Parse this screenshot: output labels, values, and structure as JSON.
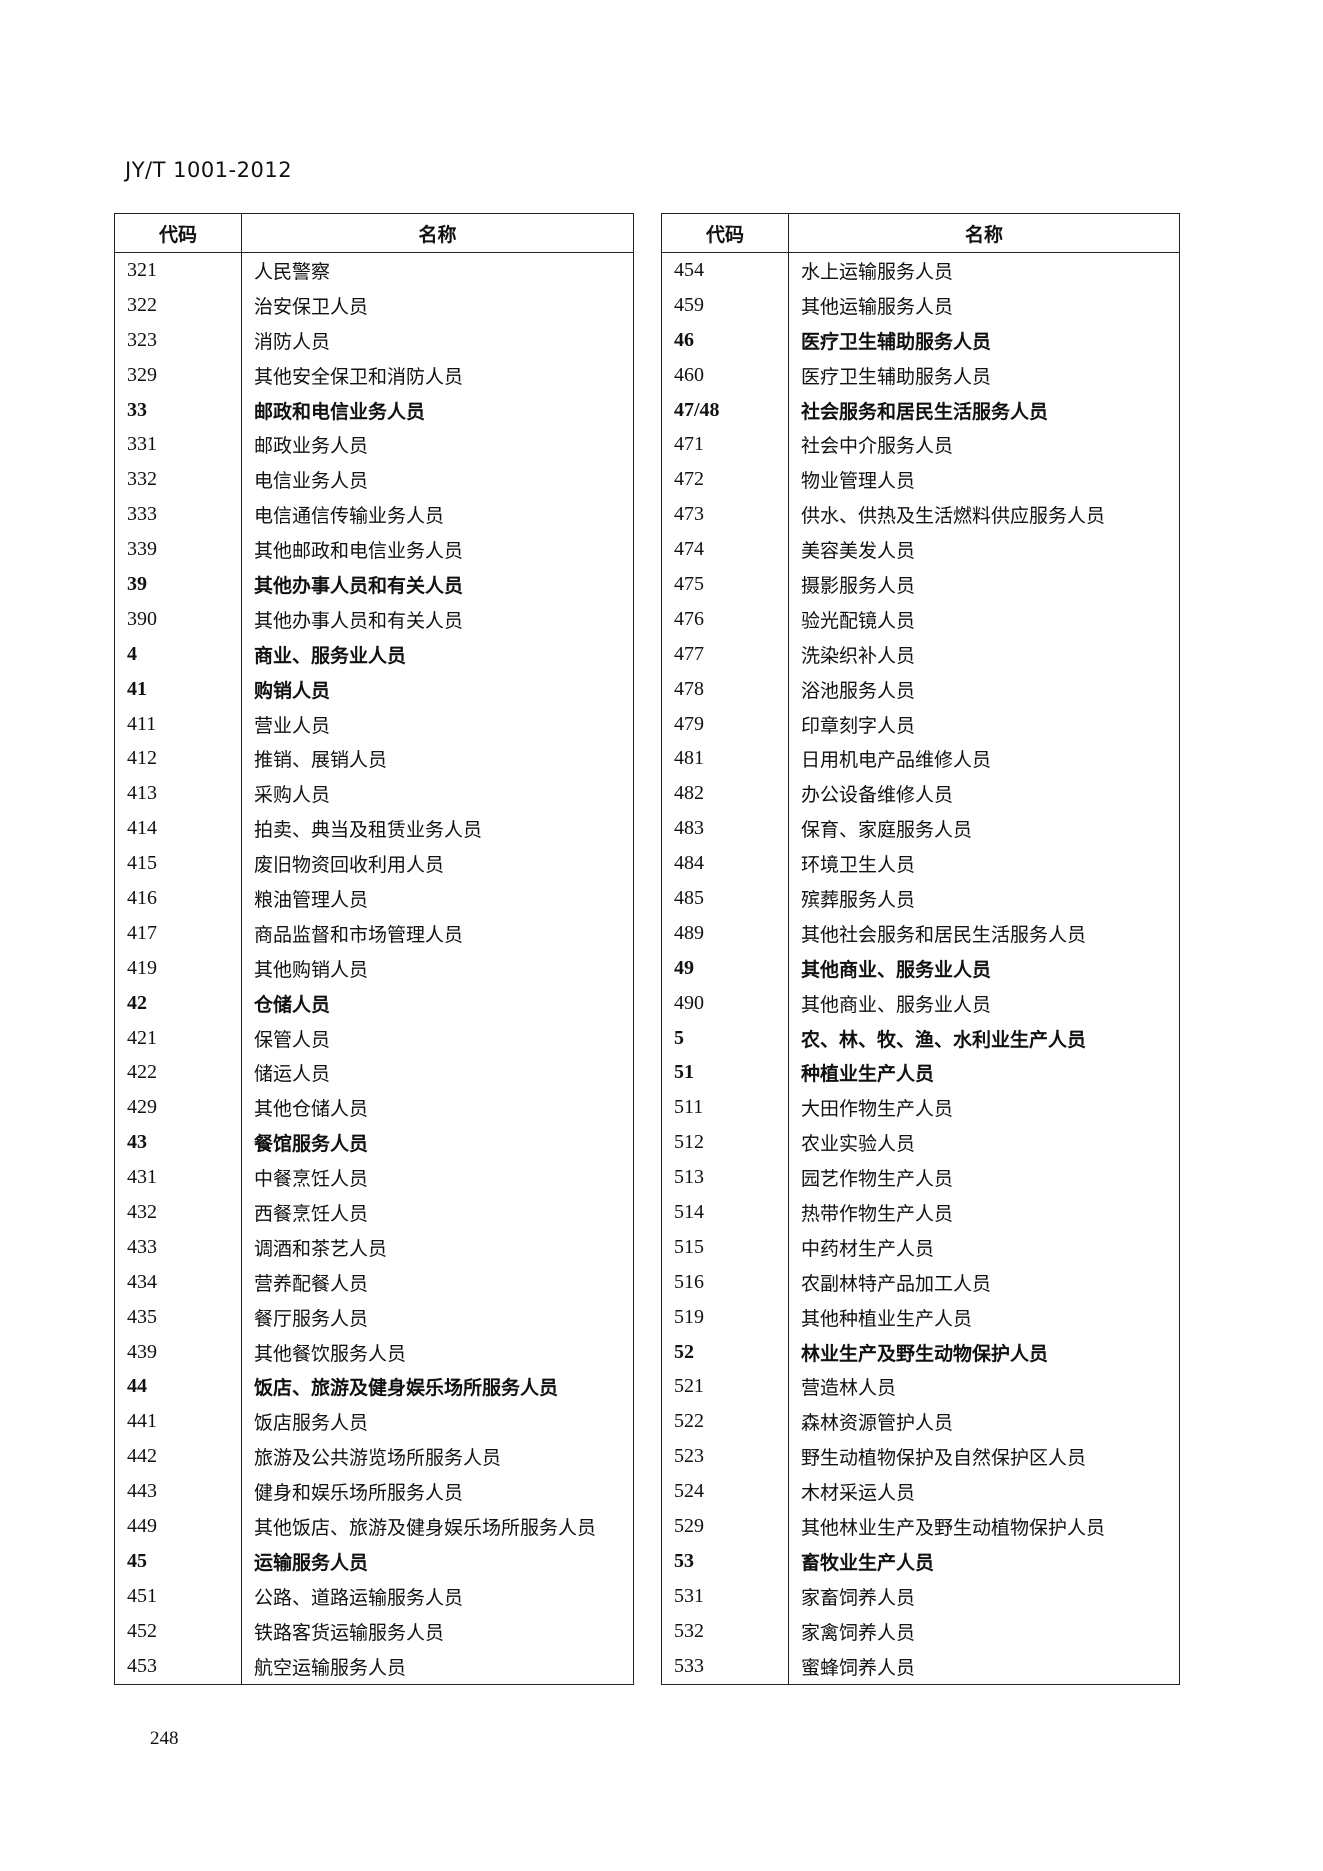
{
  "header": {
    "standard": "JY/T 1001-2012"
  },
  "page_number": "248",
  "columns": {
    "code": "代码",
    "name": "名称"
  },
  "left_rows": [
    {
      "code": "321",
      "name": "人民警察",
      "bold": false
    },
    {
      "code": "322",
      "name": "治安保卫人员",
      "bold": false
    },
    {
      "code": "323",
      "name": "消防人员",
      "bold": false
    },
    {
      "code": "329",
      "name": "其他安全保卫和消防人员",
      "bold": false
    },
    {
      "code": "33",
      "name": "邮政和电信业务人员",
      "bold": true
    },
    {
      "code": "331",
      "name": "邮政业务人员",
      "bold": false
    },
    {
      "code": "332",
      "name": "电信业务人员",
      "bold": false
    },
    {
      "code": "333",
      "name": "电信通信传输业务人员",
      "bold": false
    },
    {
      "code": "339",
      "name": "其他邮政和电信业务人员",
      "bold": false
    },
    {
      "code": "39",
      "name": "其他办事人员和有关人员",
      "bold": true
    },
    {
      "code": "390",
      "name": "其他办事人员和有关人员",
      "bold": false
    },
    {
      "code": "4",
      "name": "商业、服务业人员",
      "bold": true
    },
    {
      "code": "41",
      "name": "购销人员",
      "bold": true
    },
    {
      "code": "411",
      "name": "营业人员",
      "bold": false
    },
    {
      "code": "412",
      "name": "推销、展销人员",
      "bold": false
    },
    {
      "code": "413",
      "name": "采购人员",
      "bold": false
    },
    {
      "code": "414",
      "name": "拍卖、典当及租赁业务人员",
      "bold": false
    },
    {
      "code": "415",
      "name": "废旧物资回收利用人员",
      "bold": false
    },
    {
      "code": "416",
      "name": "粮油管理人员",
      "bold": false
    },
    {
      "code": "417",
      "name": "商品监督和市场管理人员",
      "bold": false
    },
    {
      "code": "419",
      "name": "其他购销人员",
      "bold": false
    },
    {
      "code": "42",
      "name": "仓储人员",
      "bold": true
    },
    {
      "code": "421",
      "name": "保管人员",
      "bold": false
    },
    {
      "code": "422",
      "name": "储运人员",
      "bold": false
    },
    {
      "code": "429",
      "name": "其他仓储人员",
      "bold": false
    },
    {
      "code": "43",
      "name": "餐馆服务人员",
      "bold": true
    },
    {
      "code": "431",
      "name": "中餐烹饪人员",
      "bold": false
    },
    {
      "code": "432",
      "name": "西餐烹饪人员",
      "bold": false
    },
    {
      "code": "433",
      "name": "调酒和茶艺人员",
      "bold": false
    },
    {
      "code": "434",
      "name": "营养配餐人员",
      "bold": false
    },
    {
      "code": "435",
      "name": "餐厅服务人员",
      "bold": false
    },
    {
      "code": "439",
      "name": "其他餐饮服务人员",
      "bold": false
    },
    {
      "code": "44",
      "name": "饭店、旅游及健身娱乐场所服务人员",
      "bold": true
    },
    {
      "code": "441",
      "name": "饭店服务人员",
      "bold": false
    },
    {
      "code": "442",
      "name": "旅游及公共游览场所服务人员",
      "bold": false
    },
    {
      "code": "443",
      "name": "健身和娱乐场所服务人员",
      "bold": false
    },
    {
      "code": "449",
      "name": "其他饭店、旅游及健身娱乐场所服务人员",
      "bold": false
    },
    {
      "code": "45",
      "name": "运输服务人员",
      "bold": true
    },
    {
      "code": "451",
      "name": "公路、道路运输服务人员",
      "bold": false
    },
    {
      "code": "452",
      "name": "铁路客货运输服务人员",
      "bold": false
    },
    {
      "code": "453",
      "name": "航空运输服务人员",
      "bold": false
    }
  ],
  "right_rows": [
    {
      "code": "454",
      "name": "水上运输服务人员",
      "bold": false
    },
    {
      "code": "459",
      "name": "其他运输服务人员",
      "bold": false
    },
    {
      "code": "46",
      "name": "医疗卫生辅助服务人员",
      "bold": true
    },
    {
      "code": "460",
      "name": "医疗卫生辅助服务人员",
      "bold": false
    },
    {
      "code": "47/48",
      "name": "社会服务和居民生活服务人员",
      "bold": true
    },
    {
      "code": "471",
      "name": "社会中介服务人员",
      "bold": false
    },
    {
      "code": "472",
      "name": "物业管理人员",
      "bold": false
    },
    {
      "code": "473",
      "name": "供水、供热及生活燃料供应服务人员",
      "bold": false
    },
    {
      "code": "474",
      "name": "美容美发人员",
      "bold": false
    },
    {
      "code": "475",
      "name": "摄影服务人员",
      "bold": false
    },
    {
      "code": "476",
      "name": "验光配镜人员",
      "bold": false
    },
    {
      "code": "477",
      "name": "洗染织补人员",
      "bold": false
    },
    {
      "code": "478",
      "name": "浴池服务人员",
      "bold": false
    },
    {
      "code": "479",
      "name": "印章刻字人员",
      "bold": false
    },
    {
      "code": "481",
      "name": "日用机电产品维修人员",
      "bold": false
    },
    {
      "code": "482",
      "name": "办公设备维修人员",
      "bold": false
    },
    {
      "code": "483",
      "name": "保育、家庭服务人员",
      "bold": false
    },
    {
      "code": "484",
      "name": "环境卫生人员",
      "bold": false
    },
    {
      "code": "485",
      "name": "殡葬服务人员",
      "bold": false
    },
    {
      "code": "489",
      "name": "其他社会服务和居民生活服务人员",
      "bold": false
    },
    {
      "code": "49",
      "name": "其他商业、服务业人员",
      "bold": true
    },
    {
      "code": "490",
      "name": "其他商业、服务业人员",
      "bold": false
    },
    {
      "code": "5",
      "name": "农、林、牧、渔、水利业生产人员",
      "bold": true
    },
    {
      "code": "51",
      "name": "种植业生产人员",
      "bold": true
    },
    {
      "code": "511",
      "name": "大田作物生产人员",
      "bold": false
    },
    {
      "code": "512",
      "name": "农业实验人员",
      "bold": false
    },
    {
      "code": "513",
      "name": "园艺作物生产人员",
      "bold": false
    },
    {
      "code": "514",
      "name": "热带作物生产人员",
      "bold": false
    },
    {
      "code": "515",
      "name": "中药材生产人员",
      "bold": false
    },
    {
      "code": "516",
      "name": "农副林特产品加工人员",
      "bold": false
    },
    {
      "code": "519",
      "name": "其他种植业生产人员",
      "bold": false
    },
    {
      "code": "52",
      "name": "林业生产及野生动物保护人员",
      "bold": true
    },
    {
      "code": "521",
      "name": "营造林人员",
      "bold": false
    },
    {
      "code": "522",
      "name": "森林资源管护人员",
      "bold": false
    },
    {
      "code": "523",
      "name": "野生动植物保护及自然保护区人员",
      "bold": false
    },
    {
      "code": "524",
      "name": "木材采运人员",
      "bold": false
    },
    {
      "code": "529",
      "name": "其他林业生产及野生动植物保护人员",
      "bold": false
    },
    {
      "code": "53",
      "name": "畜牧业生产人员",
      "bold": true
    },
    {
      "code": "531",
      "name": "家畜饲养人员",
      "bold": false
    },
    {
      "code": "532",
      "name": "家禽饲养人员",
      "bold": false
    },
    {
      "code": "533",
      "name": "蜜蜂饲养人员",
      "bold": false
    }
  ]
}
